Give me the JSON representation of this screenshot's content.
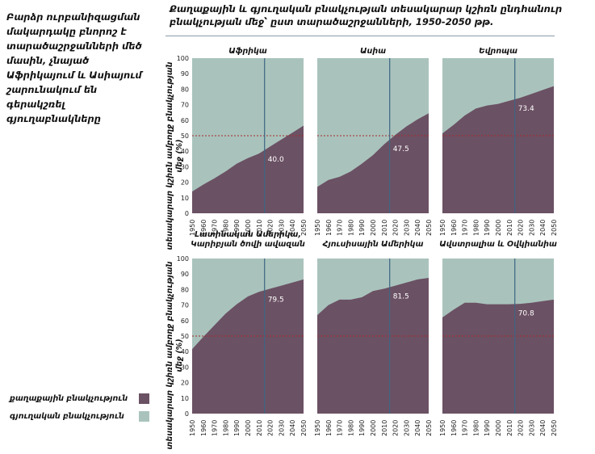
{
  "side_note": "Բարձր ուրբանիզացման մակարդակը բնորոշ է տարածաշրջանների մեծ մասին, չնայած Աֆրիկայում և Ասիայում շարունակում են գերակշռել գյուղաբնակները",
  "main_title": "Քաղաքային և գյուղական բնակչության տեսակարար կշիռն ընդհանուր բնակչության մեջ՝ ըստ տարածաշրջանների, 1950-2050 թթ.",
  "y_axis_label": "տեսակարար կշիռն ամբողջ բնակչության մեջ (%)",
  "legend": {
    "urban": "քաղաքային բնակչություն",
    "rural": "գյուղական բնակչություն"
  },
  "colors": {
    "urban": "#6b5164",
    "rural": "#a9c3bc",
    "reference_line": "#a52a2a",
    "marker_line": "#3d6684",
    "title_rule": "#8a9aa8"
  },
  "chart_data": [
    {
      "type": "area",
      "title": "Աֆրիկա",
      "x": [
        1950,
        1960,
        1970,
        1980,
        1990,
        2000,
        2010,
        2020,
        2030,
        2040,
        2050
      ],
      "series": [
        {
          "name": "քաղաքային բնակչություն",
          "values": [
            14,
            18.5,
            22.5,
            27,
            32,
            35.5,
            38.5,
            43,
            47.5,
            52,
            56.5
          ]
        },
        {
          "name": "գյուղական բնակչություն",
          "values": [
            86,
            81.5,
            77.5,
            73,
            68,
            64.5,
            61.5,
            57,
            52.5,
            48,
            43.5
          ]
        }
      ],
      "marker_year": 2015,
      "marker_value": "40.0",
      "reference_y": 50,
      "ylim": [
        0,
        100
      ],
      "yticks": [
        0,
        10,
        20,
        30,
        40,
        50,
        60,
        70,
        80,
        90,
        100
      ]
    },
    {
      "type": "area",
      "title": "Ասիա",
      "x": [
        1950,
        1960,
        1970,
        1980,
        1990,
        2000,
        2010,
        2020,
        2030,
        2040,
        2050
      ],
      "series": [
        {
          "name": "քաղաքային բնակչություն",
          "values": [
            17,
            21.5,
            23.5,
            27,
            32,
            37.5,
            44.5,
            50.5,
            56,
            60.5,
            64.5
          ]
        },
        {
          "name": "գյուղական բնակչություն",
          "values": [
            83,
            78.5,
            76.5,
            73,
            68,
            62.5,
            55.5,
            49.5,
            44,
            39.5,
            35.5
          ]
        }
      ],
      "marker_year": 2015,
      "marker_value": "47.5",
      "reference_y": 50,
      "ylim": [
        0,
        100
      ]
    },
    {
      "type": "area",
      "title": "Եվրոպա",
      "x": [
        1950,
        1960,
        1970,
        1980,
        1990,
        2000,
        2010,
        2020,
        2030,
        2040,
        2050
      ],
      "series": [
        {
          "name": "քաղաքային բնակչություն",
          "values": [
            51.5,
            57,
            63,
            67.5,
            69.5,
            70.5,
            72.5,
            74.5,
            77,
            79.5,
            82
          ]
        },
        {
          "name": "գյուղական բնակչություն",
          "values": [
            48.5,
            43,
            37,
            32.5,
            30.5,
            29.5,
            27.5,
            25.5,
            23,
            20.5,
            18
          ]
        }
      ],
      "marker_year": 2015,
      "marker_value": "73.4",
      "reference_y": 50,
      "ylim": [
        0,
        100
      ]
    },
    {
      "type": "area",
      "title": "Լատինական Ամերիկա, Կարիբյան ծովի ավազան",
      "x": [
        1950,
        1960,
        1970,
        1980,
        1990,
        2000,
        2010,
        2020,
        2030,
        2040,
        2050
      ],
      "series": [
        {
          "name": "քաղաքային բնակչություն",
          "values": [
            41.5,
            49.5,
            57,
            64.5,
            70.5,
            75.5,
            78.5,
            80.5,
            82.5,
            84.5,
            86.5
          ]
        },
        {
          "name": "գյուղական բնակչություն",
          "values": [
            58.5,
            50.5,
            43,
            35.5,
            29.5,
            24.5,
            21.5,
            19.5,
            17.5,
            15.5,
            13.5
          ]
        }
      ],
      "marker_year": 2015,
      "marker_value": "79.5",
      "reference_y": 50,
      "ylim": [
        0,
        100
      ],
      "yticks": [
        0,
        10,
        20,
        30,
        40,
        50,
        60,
        70,
        80,
        90,
        100
      ]
    },
    {
      "type": "area",
      "title": "Հյուսիսային Ամերիկա",
      "x": [
        1950,
        1960,
        1970,
        1980,
        1990,
        2000,
        2010,
        2020,
        2030,
        2040,
        2050
      ],
      "series": [
        {
          "name": "քաղաքային բնակչություն",
          "values": [
            63.5,
            70,
            73.5,
            73.5,
            75,
            79,
            80.5,
            82.5,
            84.5,
            86.5,
            87.5
          ]
        },
        {
          "name": "գյուղական բնակչություն",
          "values": [
            36.5,
            30,
            26.5,
            26.5,
            25,
            21,
            19.5,
            17.5,
            15.5,
            13.5,
            12.5
          ]
        }
      ],
      "marker_year": 2015,
      "marker_value": "81.5",
      "reference_y": 50,
      "ylim": [
        0,
        100
      ]
    },
    {
      "type": "area",
      "title": "Ավստրալիա և Օվկիանիա",
      "x": [
        1950,
        1960,
        1970,
        1980,
        1990,
        2000,
        2010,
        2020,
        2030,
        2040,
        2050
      ],
      "series": [
        {
          "name": "քաղաքային բնակչություն",
          "values": [
            62,
            67,
            71.5,
            71.5,
            70.5,
            70.5,
            70.5,
            70.8,
            71.5,
            72.5,
            73.5
          ]
        },
        {
          "name": "գյուղական բնակչություն",
          "values": [
            38,
            33,
            28.5,
            28.5,
            29.5,
            29.5,
            29.5,
            29.2,
            28.5,
            27.5,
            26.5
          ]
        }
      ],
      "marker_year": 2015,
      "marker_value": "70.8",
      "reference_y": 50,
      "ylim": [
        0,
        100
      ]
    }
  ]
}
